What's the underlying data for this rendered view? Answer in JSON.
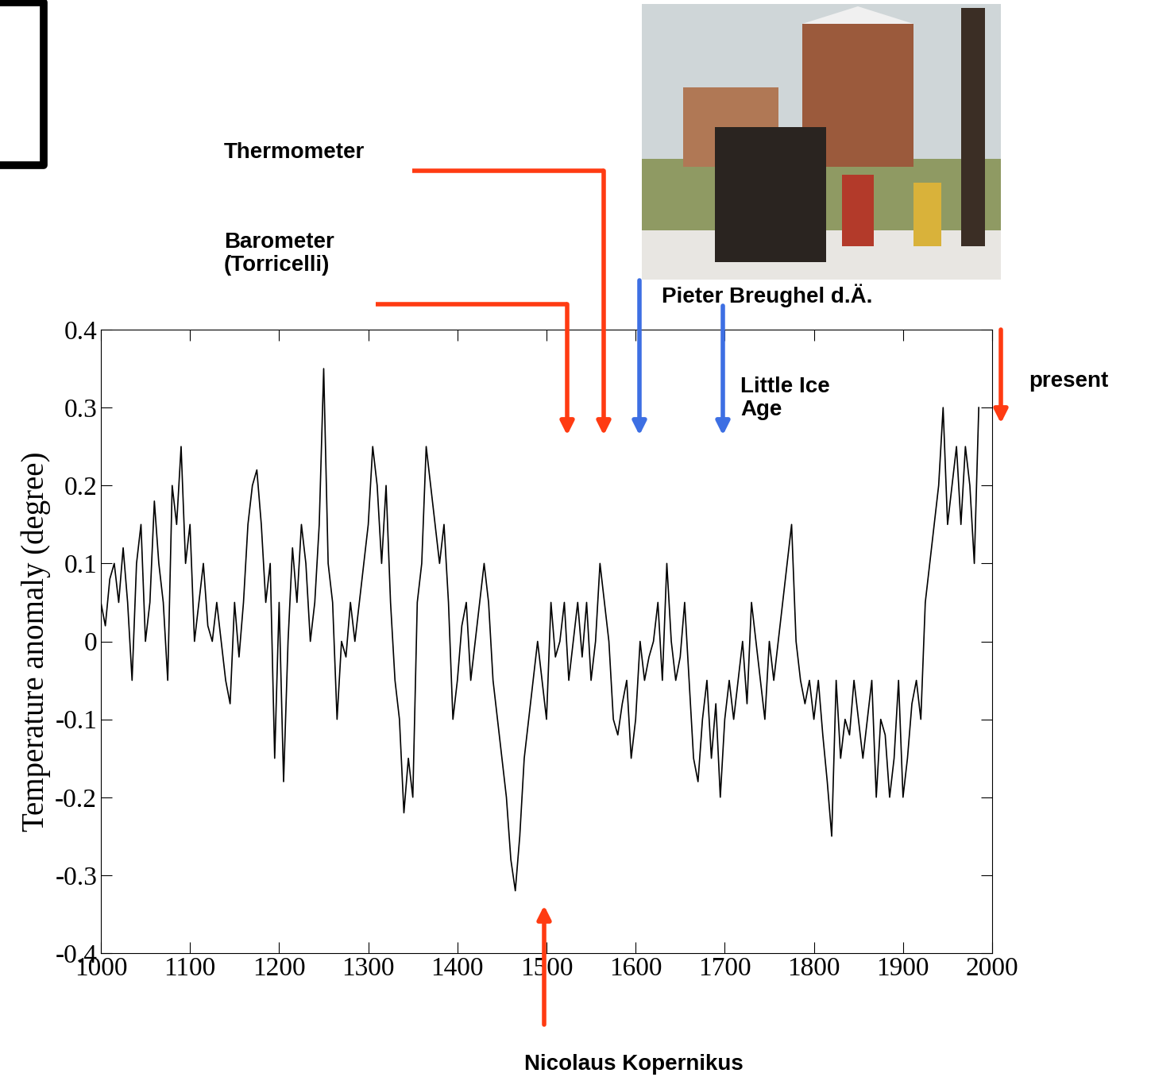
{
  "chart_data": {
    "type": "line",
    "y_label": "Temperature anomaly (degree)",
    "color": "#000000",
    "x": [
      1000,
      1005,
      1010,
      1015,
      1020,
      1025,
      1030,
      1035,
      1040,
      1045,
      1050,
      1055,
      1060,
      1065,
      1070,
      1075,
      1080,
      1085,
      1090,
      1095,
      1100,
      1105,
      1110,
      1115,
      1120,
      1125,
      1130,
      1135,
      1140,
      1145,
      1150,
      1155,
      1160,
      1165,
      1170,
      1175,
      1180,
      1185,
      1190,
      1195,
      1200,
      1205,
      1210,
      1215,
      1220,
      1225,
      1230,
      1235,
      1240,
      1245,
      1250,
      1255,
      1260,
      1265,
      1270,
      1275,
      1280,
      1285,
      1290,
      1295,
      1300,
      1305,
      1310,
      1315,
      1320,
      1325,
      1330,
      1335,
      1340,
      1345,
      1350,
      1355,
      1360,
      1365,
      1370,
      1375,
      1380,
      1385,
      1390,
      1395,
      1400,
      1405,
      1410,
      1415,
      1420,
      1425,
      1430,
      1435,
      1440,
      1445,
      1450,
      1455,
      1460,
      1465,
      1470,
      1475,
      1480,
      1485,
      1490,
      1495,
      1500,
      1505,
      1510,
      1515,
      1520,
      1525,
      1530,
      1535,
      1540,
      1545,
      1550,
      1555,
      1560,
      1565,
      1570,
      1575,
      1580,
      1585,
      1590,
      1595,
      1600,
      1605,
      1610,
      1615,
      1620,
      1625,
      1630,
      1635,
      1640,
      1645,
      1650,
      1655,
      1660,
      1665,
      1670,
      1675,
      1680,
      1685,
      1690,
      1695,
      1700,
      1705,
      1710,
      1715,
      1720,
      1725,
      1730,
      1735,
      1740,
      1745,
      1750,
      1755,
      1760,
      1765,
      1770,
      1775,
      1780,
      1785,
      1790,
      1795,
      1800,
      1805,
      1810,
      1815,
      1820,
      1825,
      1830,
      1835,
      1840,
      1845,
      1850,
      1855,
      1860,
      1865,
      1870,
      1875,
      1880,
      1885,
      1890,
      1895,
      1900,
      1905,
      1910,
      1915,
      1920,
      1925,
      1930,
      1935,
      1940,
      1945,
      1950,
      1955,
      1960,
      1965,
      1970,
      1975,
      1980,
      1985
    ],
    "values": [
      0.05,
      0.02,
      0.08,
      0.1,
      0.05,
      0.12,
      0.05,
      -0.05,
      0.1,
      0.15,
      0.0,
      0.05,
      0.18,
      0.1,
      0.05,
      -0.05,
      0.2,
      0.15,
      0.25,
      0.1,
      0.15,
      0.0,
      0.05,
      0.1,
      0.02,
      0.0,
      0.05,
      0.0,
      -0.05,
      -0.08,
      0.05,
      -0.02,
      0.05,
      0.15,
      0.2,
      0.22,
      0.15,
      0.05,
      0.1,
      -0.15,
      0.05,
      -0.18,
      0.0,
      0.12,
      0.05,
      0.15,
      0.1,
      0.0,
      0.05,
      0.15,
      0.35,
      0.1,
      0.05,
      -0.1,
      0.0,
      -0.02,
      0.05,
      0.0,
      0.05,
      0.1,
      0.15,
      0.25,
      0.2,
      0.1,
      0.2,
      0.05,
      -0.05,
      -0.1,
      -0.22,
      -0.15,
      -0.2,
      0.05,
      0.1,
      0.25,
      0.2,
      0.15,
      0.1,
      0.15,
      0.05,
      -0.1,
      -0.05,
      0.02,
      0.05,
      -0.05,
      0.0,
      0.05,
      0.1,
      0.05,
      -0.05,
      -0.1,
      -0.15,
      -0.2,
      -0.28,
      -0.32,
      -0.25,
      -0.15,
      -0.1,
      -0.05,
      0.0,
      -0.05,
      -0.1,
      0.05,
      -0.02,
      0.0,
      0.05,
      -0.05,
      0.0,
      0.05,
      -0.02,
      0.05,
      -0.05,
      0.0,
      0.1,
      0.05,
      0.0,
      -0.1,
      -0.12,
      -0.08,
      -0.05,
      -0.15,
      -0.1,
      0.0,
      -0.05,
      -0.02,
      0.0,
      0.05,
      -0.05,
      0.1,
      0.0,
      -0.05,
      -0.02,
      0.05,
      -0.05,
      -0.15,
      -0.18,
      -0.1,
      -0.05,
      -0.15,
      -0.08,
      -0.2,
      -0.1,
      -0.05,
      -0.1,
      -0.05,
      0.0,
      -0.08,
      0.05,
      0.0,
      -0.05,
      -0.1,
      0.0,
      -0.05,
      0.0,
      0.05,
      0.1,
      0.15,
      0.0,
      -0.05,
      -0.08,
      -0.05,
      -0.1,
      -0.05,
      -0.12,
      -0.18,
      -0.25,
      -0.05,
      -0.15,
      -0.1,
      -0.12,
      -0.05,
      -0.1,
      -0.15,
      -0.1,
      -0.05,
      -0.2,
      -0.1,
      -0.12,
      -0.2,
      -0.15,
      -0.05,
      -0.2,
      -0.15,
      -0.08,
      -0.05,
      -0.1,
      0.05,
      0.1,
      0.15,
      0.2,
      0.3,
      0.15,
      0.2,
      0.25,
      0.15,
      0.25,
      0.2,
      0.1,
      0.3
    ],
    "xlim": [
      1000,
      2000
    ],
    "xticks": [
      1000,
      1100,
      1200,
      1300,
      1400,
      1500,
      1600,
      1700,
      1800,
      1900,
      2000
    ],
    "ylim": [
      -0.4,
      0.4
    ],
    "yticks": [
      -0.4,
      -0.3,
      -0.2,
      -0.1,
      0,
      0.1,
      0.2,
      0.3,
      0.4
    ],
    "grid": false,
    "annotations": [
      "Thermometer",
      "Barometer\n(Torricelli)",
      "Pieter Breughel d.Ä.",
      "Little Ice\nAge",
      "present",
      "Nicolaus Kopernikus"
    ]
  }
}
